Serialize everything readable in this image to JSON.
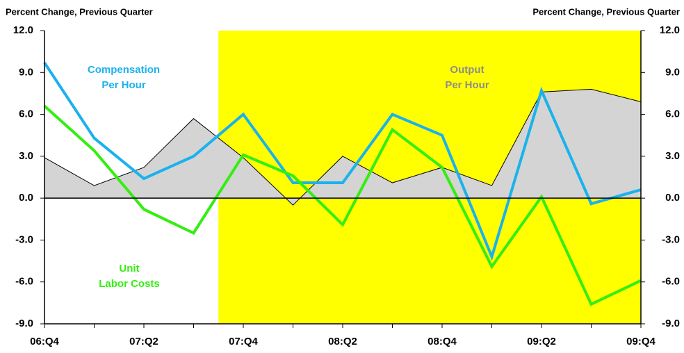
{
  "chart_data": {
    "type": "line",
    "y_title": "Percent Change, Previous Quarter",
    "y2_title": "Percent Change, Previous Quarter",
    "categories": [
      "06:Q4",
      null,
      "07:Q2",
      null,
      "07:Q4",
      null,
      "08:Q2",
      null,
      "08:Q4",
      null,
      "09:Q2",
      null,
      "09:Q4"
    ],
    "shaded_region": {
      "from": 3.5,
      "to": 12,
      "color": "#ffff00"
    },
    "series": [
      {
        "name": [
          "Output",
          "Per Hour"
        ],
        "kind": "area",
        "color": "#d4d4d4",
        "label_color": "#8c8c8c",
        "values": [
          2.9,
          0.9,
          2.2,
          5.7,
          2.9,
          -0.5,
          3.0,
          1.1,
          2.2,
          0.9,
          7.6,
          7.8,
          6.9
        ]
      },
      {
        "name": [
          "Compensation",
          "Per Hour"
        ],
        "kind": "line",
        "color": "#1ab2ec",
        "label_color": "#1ab2ec",
        "values": [
          9.7,
          4.3,
          1.4,
          3.0,
          6.0,
          1.1,
          1.1,
          6.0,
          4.5,
          -4.2,
          7.7,
          -0.4,
          0.6
        ]
      },
      {
        "name": [
          "Unit",
          "Labor Costs"
        ],
        "kind": "line",
        "color": "#33ee11",
        "label_color": "#33ee11",
        "values": [
          6.6,
          3.4,
          -0.8,
          -2.5,
          3.1,
          1.6,
          -1.9,
          4.9,
          2.2,
          -4.9,
          0.1,
          -7.6,
          -5.9
        ]
      }
    ],
    "ylim": [
      -9,
      12
    ],
    "yticks": [
      {
        "value": 12,
        "label": "12.0"
      },
      {
        "value": 9,
        "label": "9.0"
      },
      {
        "value": 6,
        "label": "6.0"
      },
      {
        "value": 3,
        "label": "3.0"
      },
      {
        "value": 0,
        "label": "0.0"
      },
      {
        "value": -3,
        "label": "-3.0"
      },
      {
        "value": -6,
        "label": "-6.0"
      },
      {
        "value": -9,
        "label": "-9.0"
      }
    ],
    "y2lim": [
      -9,
      12
    ],
    "y2ticks": [
      {
        "value": 12,
        "label": "12.0"
      },
      {
        "value": 9,
        "label": "9.0"
      },
      {
        "value": 6,
        "label": "6.0"
      },
      {
        "value": 3,
        "label": "3.0"
      },
      {
        "value": 0,
        "label": "0.0"
      },
      {
        "value": -3,
        "label": "-3.0"
      },
      {
        "value": -6,
        "label": "-6.0"
      },
      {
        "value": -9,
        "label": "-9.0"
      }
    ],
    "grid": false
  }
}
